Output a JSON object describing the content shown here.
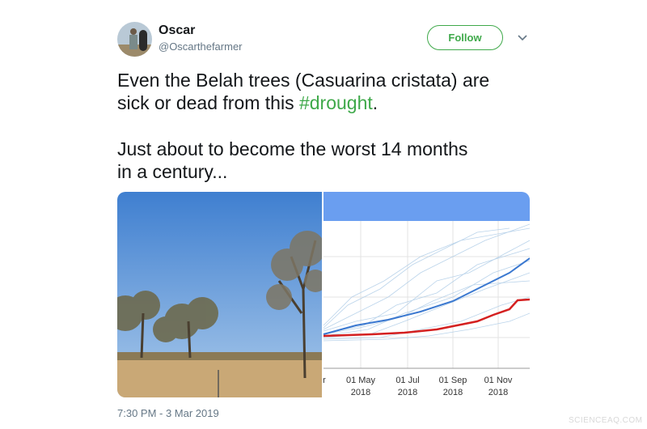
{
  "tweet": {
    "user": {
      "name": "Oscar",
      "handle": "@Oscarthefarmer"
    },
    "follow_button": "Follow",
    "lines": [
      [
        "Even the Belah trees (Casuarina cristata) are"
      ],
      [
        "sick or dead from this ",
        "#drought",
        "."
      ],
      [
        "Just about to become the worst 14 months"
      ],
      [
        "in a century..."
      ]
    ],
    "chart_axis_labels": [
      {
        "month": "r"
      },
      {
        "month": "01 May",
        "year": "2018"
      },
      {
        "month": "01 Jul",
        "year": "2018"
      },
      {
        "month": "01 Sep",
        "year": "2018"
      },
      {
        "month": "01 Nov",
        "year": "2018"
      }
    ],
    "timestamp": "7:30 PM - 3 Mar 2019"
  },
  "watermark": "SCIENCEAQ.COM"
}
